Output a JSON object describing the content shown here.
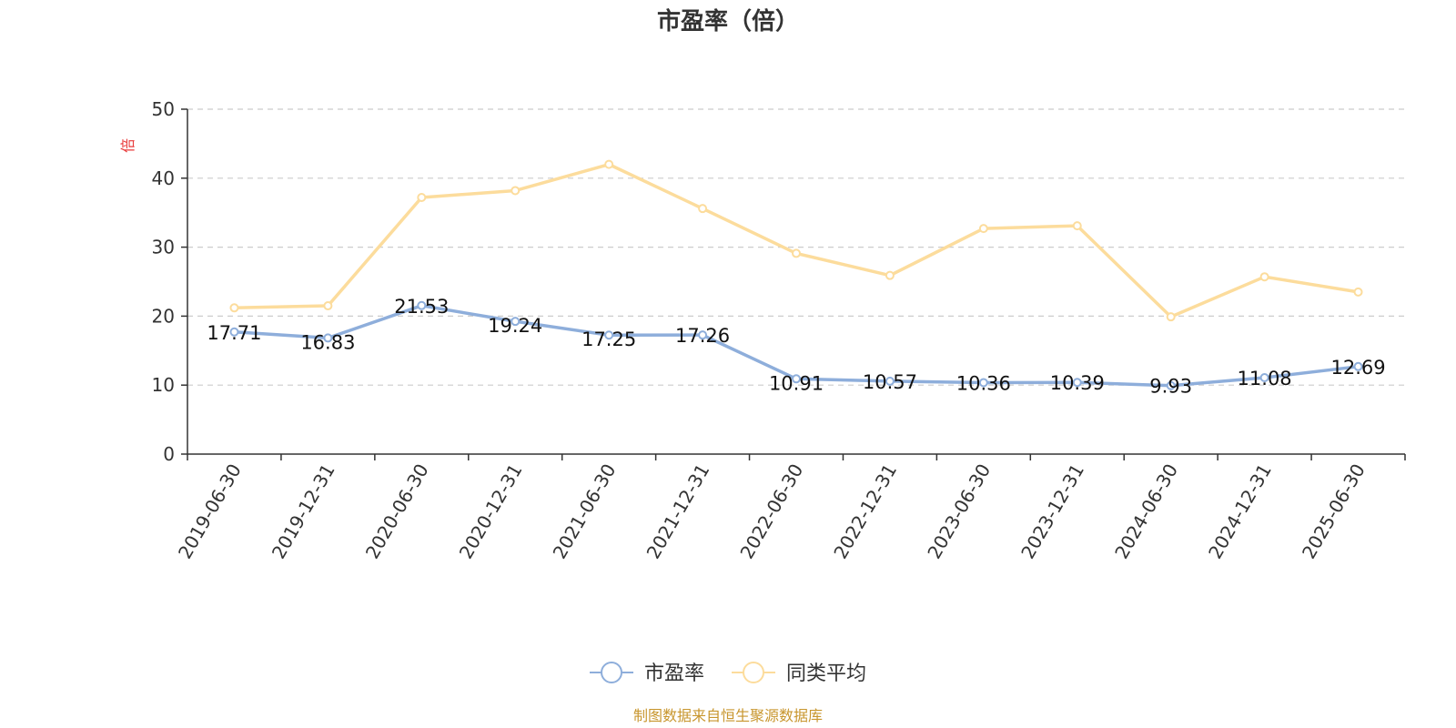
{
  "chart_data": {
    "type": "line",
    "title": "市盈率（倍）",
    "ylabel": "倍",
    "ylim": [
      0,
      50
    ],
    "yticks": [
      0,
      10,
      20,
      30,
      40,
      50
    ],
    "grid": true,
    "legend": "bottom-center",
    "categories": [
      "2019-06-30",
      "2019-12-31",
      "2020-06-30",
      "2020-12-31",
      "2021-06-30",
      "2021-12-31",
      "2022-06-30",
      "2022-12-31",
      "2023-06-30",
      "2023-12-31",
      "2024-06-30",
      "2024-12-31",
      "2025-06-30"
    ],
    "series": [
      {
        "name": "市盈率",
        "color": "#8eaedb",
        "values": [
          17.71,
          16.83,
          21.53,
          19.24,
          17.25,
          17.26,
          10.91,
          10.57,
          10.36,
          10.39,
          9.93,
          11.08,
          12.69
        ],
        "labels": [
          "17.71",
          "16.83",
          "21.53",
          "19.24",
          "17.25",
          "17.26",
          "10.91",
          "10.57",
          "10.36",
          "10.39",
          "9.93",
          "11.08",
          "12.69"
        ]
      },
      {
        "name": "同类平均",
        "color": "#fcdc9c",
        "values": [
          21.2,
          21.5,
          37.2,
          38.2,
          42.0,
          35.6,
          29.1,
          25.9,
          32.7,
          33.1,
          19.9,
          25.7,
          23.5
        ]
      }
    ],
    "source": "制图数据来自恒生聚源数据库"
  }
}
